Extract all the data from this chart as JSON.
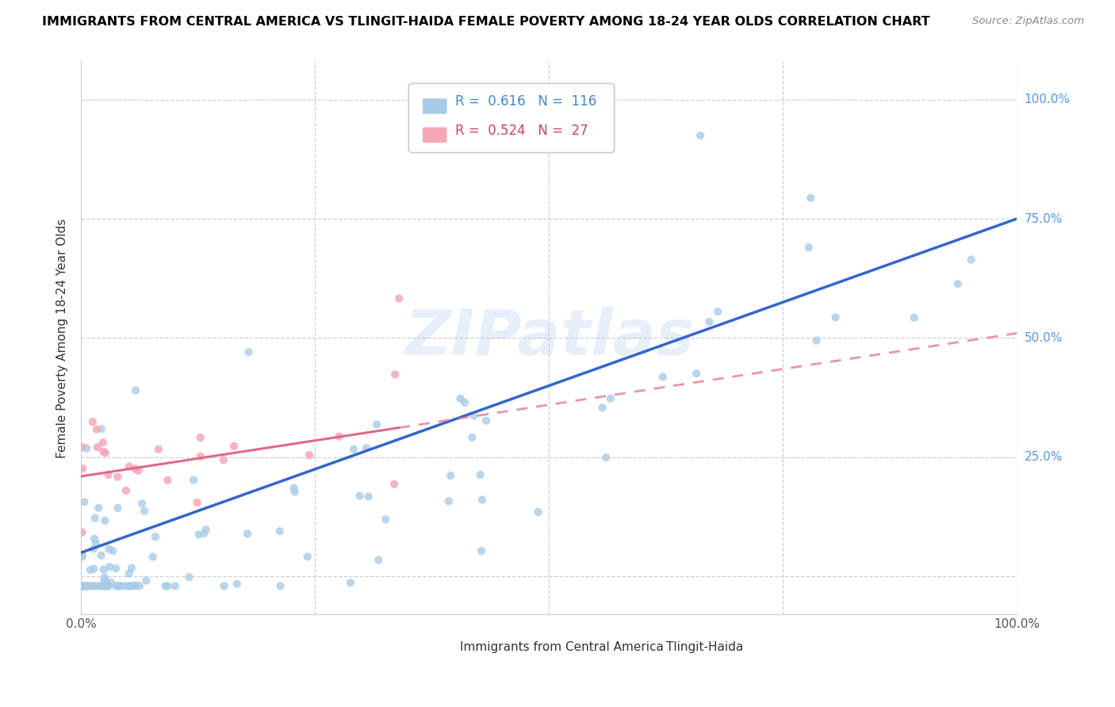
{
  "title": "IMMIGRANTS FROM CENTRAL AMERICA VS TLINGIT-HAIDA FEMALE POVERTY AMONG 18-24 YEAR OLDS CORRELATION CHART",
  "source": "Source: ZipAtlas.com",
  "ylabel": "Female Poverty Among 18-24 Year Olds",
  "blue_R": 0.616,
  "blue_N": 116,
  "pink_R": 0.524,
  "pink_N": 27,
  "blue_color": "#a8cce8",
  "pink_color": "#f4a8b8",
  "blue_line_color": "#3366cc",
  "pink_line_color": "#e06888",
  "legend_label_blue": "Immigrants from Central America",
  "legend_label_pink": "Tlingit-Haida",
  "blue_seed": 12,
  "pink_seed": 99
}
